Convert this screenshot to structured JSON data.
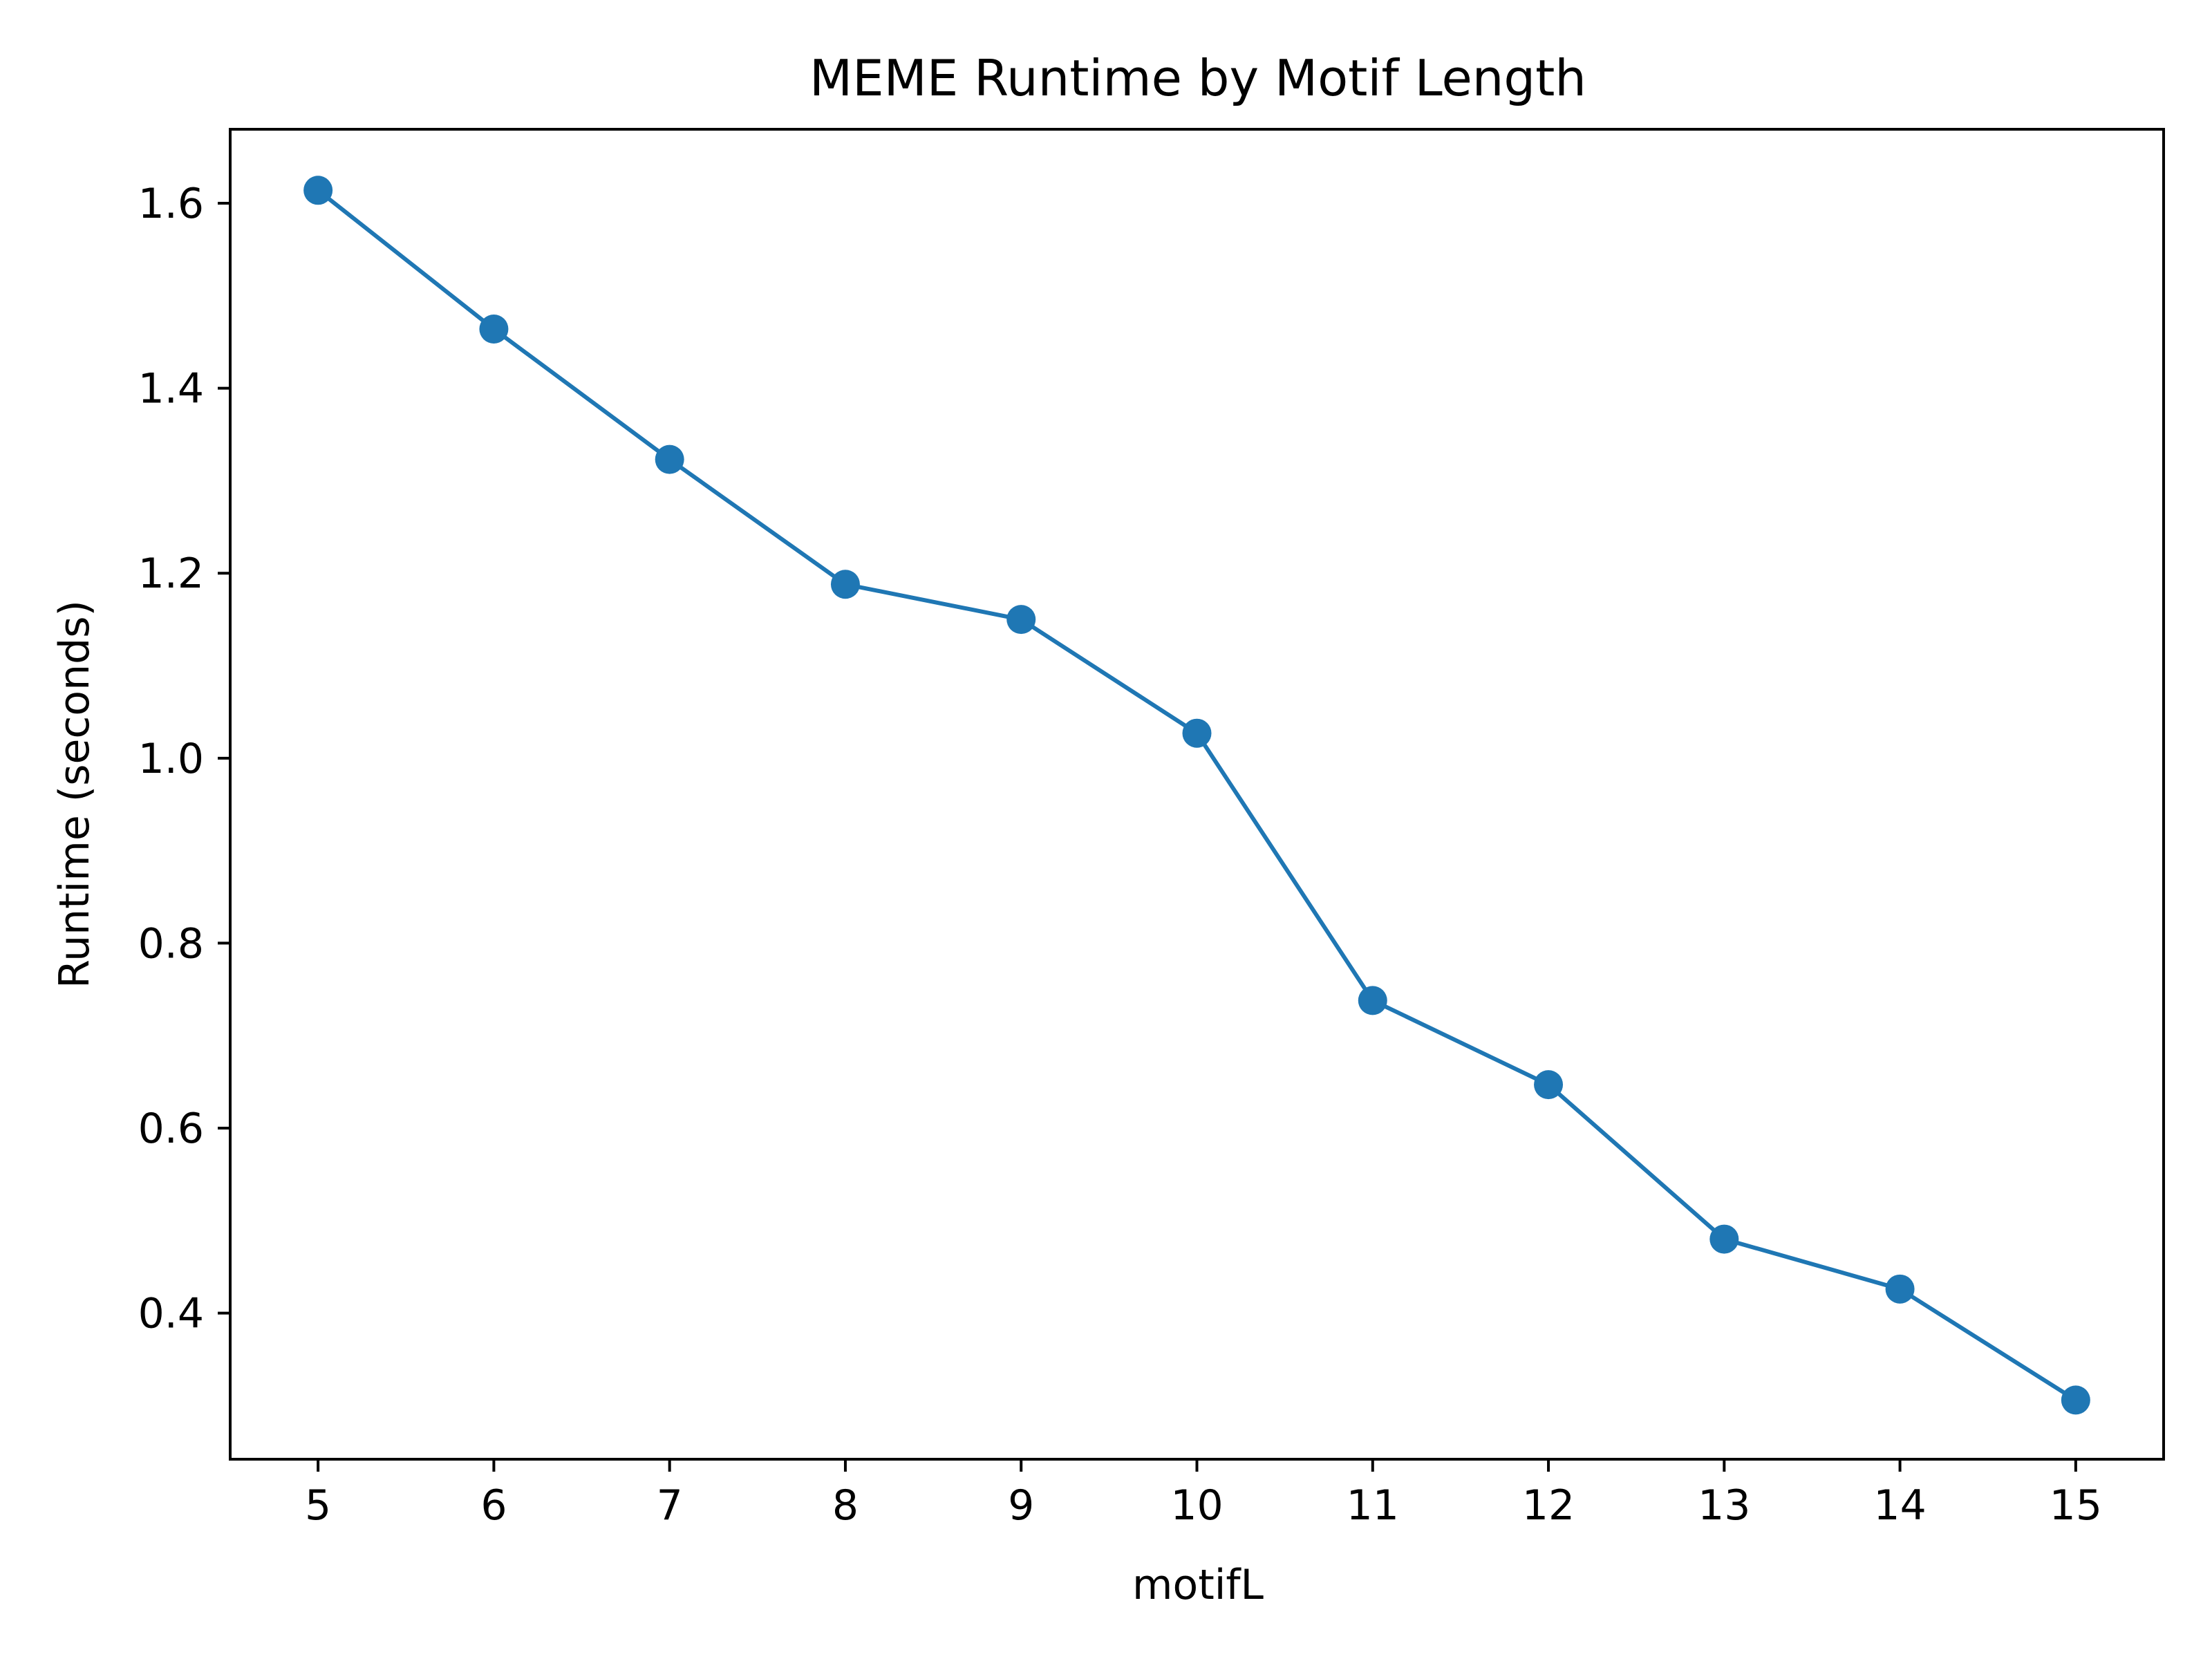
{
  "chart_data": {
    "type": "line",
    "title": "MEME Runtime by Motif Length",
    "xlabel": "motifL",
    "ylabel": "Runtime (seconds)",
    "x": [
      5,
      6,
      7,
      8,
      9,
      10,
      11,
      12,
      13,
      14,
      15
    ],
    "series": [
      {
        "values": [
          1.614,
          1.464,
          1.323,
          1.188,
          1.15,
          1.027,
          0.738,
          0.647,
          0.48,
          0.426,
          0.306
        ]
      }
    ],
    "xlim": [
      4.5,
      15.5
    ],
    "ylim": [
      0.242,
      1.68
    ],
    "xticks": [
      "5",
      "6",
      "7",
      "8",
      "9",
      "10",
      "11",
      "12",
      "13",
      "14",
      "15"
    ],
    "yticks": [
      "0.4",
      "0.6",
      "0.8",
      "1.0",
      "1.2",
      "1.4",
      "1.6"
    ],
    "marker": "circle",
    "grid": false,
    "legend": "none",
    "color": "#1f77b4"
  }
}
